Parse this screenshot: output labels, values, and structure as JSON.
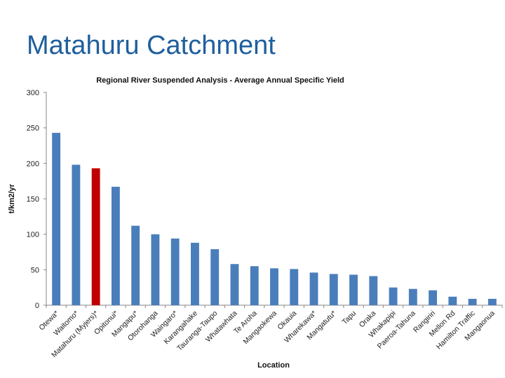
{
  "slide": {
    "title": "Matahuru Catchment"
  },
  "colors": {
    "bar": "#4a7ebb",
    "highlight": "#c00000",
    "title": "#1f5f9e",
    "axis": "#868686"
  },
  "chart_data": {
    "type": "bar",
    "title": "Regional River Suspended Analysis  - Average Annual Specific Yield",
    "xlabel": "Location",
    "ylabel": "t/km2/yr",
    "ylim": [
      0,
      300
    ],
    "yticks": [
      0,
      50,
      100,
      150,
      200,
      250,
      300
    ],
    "grid": false,
    "legend": "none",
    "categories": [
      "Otewa*",
      "Waitomo*",
      "Matahuru (Myjers)*",
      "Opitonui*",
      "Mangapu*",
      "Otorohanga",
      "Waingaro*",
      "Karangahake",
      "Tauranga-Taupo",
      "Whatawhata",
      "Te Aroha",
      "Mangaokewa",
      "Okauia",
      "Wharekawa*",
      "Mangatutu*",
      "Tapu",
      "Oraka",
      "Whakapipi",
      "Paeroa-Tahuna",
      "Rangiriri",
      "Mellon Rd",
      "Hamilton Traffic",
      "Mangaonua"
    ],
    "values": [
      243,
      198,
      193,
      167,
      112,
      100,
      94,
      88,
      79,
      58,
      55,
      52,
      51,
      46,
      44,
      43,
      41,
      25,
      23,
      21,
      12,
      9,
      9
    ],
    "highlight_index": 2
  }
}
